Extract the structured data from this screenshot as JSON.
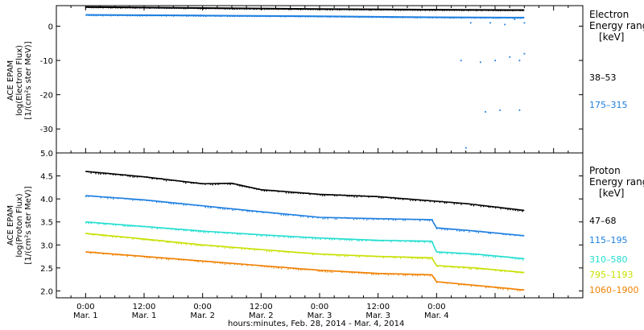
{
  "chart_data": [
    {
      "type": "scatter",
      "title": "",
      "ylabel": [
        "ACE EPAM",
        "log(Electron Flux)",
        "[1/(cm²s ster MeV)]"
      ],
      "ylim": [
        -37,
        6
      ],
      "yticks": [
        0,
        -10,
        -20,
        -30
      ],
      "xlim": [
        -6,
        102
      ],
      "legend_heading": [
        "Electron",
        "Energy range",
        "[keV]"
      ],
      "series": [
        {
          "name": "38–53",
          "color": "#000000",
          "x": [
            0,
            24,
            48,
            72,
            90
          ],
          "y": [
            5.6,
            5.3,
            5.0,
            4.8,
            4.7
          ]
        },
        {
          "name": "175–315",
          "color": "#1e7fe0",
          "x": [
            0,
            24,
            48,
            72,
            90
          ],
          "y": [
            3.3,
            3.1,
            2.9,
            2.6,
            2.5
          ],
          "outliers": [
            {
              "x": 77,
              "y": -10
            },
            {
              "x": 81,
              "y": -10.5
            },
            {
              "x": 84,
              "y": -10
            },
            {
              "x": 87,
              "y": -9
            },
            {
              "x": 89,
              "y": -10
            },
            {
              "x": 90,
              "y": -8
            },
            {
              "x": 79,
              "y": 1
            },
            {
              "x": 83,
              "y": 1
            },
            {
              "x": 86,
              "y": 0.5
            },
            {
              "x": 88,
              "y": 2
            },
            {
              "x": 90,
              "y": 1
            },
            {
              "x": 85,
              "y": -24.5
            },
            {
              "x": 89,
              "y": -24.5
            },
            {
              "x": 82,
              "y": -25
            },
            {
              "x": 78,
              "y": -35.5
            }
          ]
        }
      ],
      "xlabel": ""
    },
    {
      "type": "scatter",
      "title": "",
      "ylabel": [
        "ACE EPAM",
        "log(Proton Flux)",
        "[1/(cm²s ster MeV)]"
      ],
      "ylim": [
        1.85,
        5.0
      ],
      "yticks": [
        5.0,
        4.5,
        4.0,
        3.5,
        3.0,
        2.5,
        2.0
      ],
      "ytick_labels": [
        "5.0",
        "4.5",
        "4.0",
        "3.5",
        "3.0",
        "2.5",
        "2.0"
      ],
      "xlim": [
        -6,
        102
      ],
      "legend_heading": [
        "Proton",
        "Energy range",
        "[keV]"
      ],
      "series": [
        {
          "name": "47–68",
          "color": "#000000",
          "x": [
            0,
            12,
            24,
            30,
            36,
            48,
            60,
            72,
            78,
            90
          ],
          "y": [
            4.6,
            4.48,
            4.33,
            4.34,
            4.2,
            4.1,
            4.05,
            3.95,
            3.9,
            3.75
          ]
        },
        {
          "name": "115–195",
          "color": "#1e7fe0",
          "x": [
            0,
            12,
            24,
            36,
            48,
            60,
            71,
            72,
            80,
            90
          ],
          "y": [
            4.07,
            3.98,
            3.85,
            3.72,
            3.6,
            3.57,
            3.55,
            3.37,
            3.3,
            3.2
          ]
        },
        {
          "name": "310–580",
          "color": "#22ded0",
          "x": [
            0,
            12,
            24,
            36,
            48,
            60,
            71,
            72,
            80,
            90
          ],
          "y": [
            3.5,
            3.4,
            3.3,
            3.22,
            3.15,
            3.1,
            3.08,
            2.85,
            2.8,
            2.7
          ]
        },
        {
          "name": "795–1193",
          "color": "#c8e000",
          "x": [
            0,
            12,
            24,
            36,
            48,
            60,
            71,
            72,
            80,
            90
          ],
          "y": [
            3.25,
            3.13,
            3.0,
            2.9,
            2.8,
            2.75,
            2.72,
            2.55,
            2.5,
            2.4
          ]
        },
        {
          "name": "1060–1900",
          "color": "#f08000",
          "x": [
            0,
            12,
            24,
            36,
            48,
            60,
            71,
            72,
            80,
            90
          ],
          "y": [
            2.85,
            2.75,
            2.65,
            2.55,
            2.45,
            2.38,
            2.35,
            2.2,
            2.12,
            2.02
          ]
        }
      ],
      "xlabel": "hours:minutes, Feb. 28, 2014 - Mar.  4, 2014",
      "xticks": [
        0,
        12,
        24,
        36,
        48,
        60,
        72,
        84,
        96
      ],
      "xtick_labels": [
        [
          "0:00",
          "Mar. 1"
        ],
        [
          "12:00",
          "Mar. 1"
        ],
        [
          "0:00",
          "Mar. 2"
        ],
        [
          "12:00",
          "Mar. 2"
        ],
        [
          "0:00",
          "Mar. 3"
        ],
        [
          "12:00",
          "Mar. 3"
        ],
        [
          "0:00",
          "Mar. 4"
        ],
        [
          "",
          ""
        ],
        [
          "",
          ""
        ]
      ]
    }
  ]
}
